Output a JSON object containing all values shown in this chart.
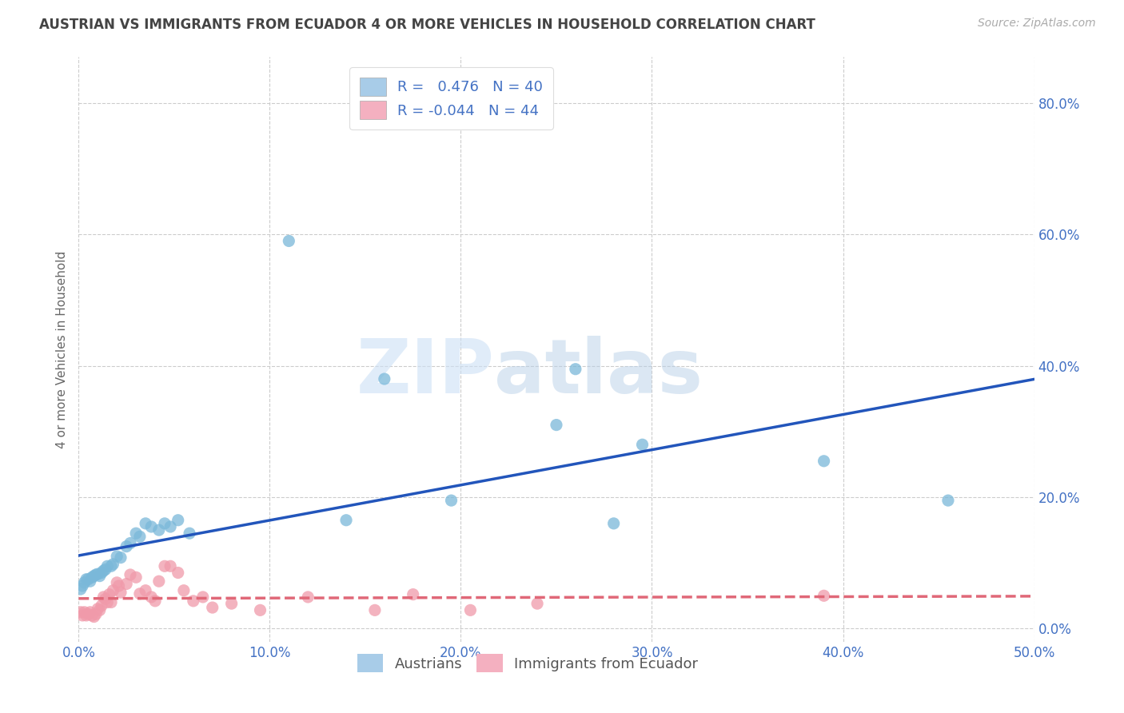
{
  "title": "AUSTRIAN VS IMMIGRANTS FROM ECUADOR 4 OR MORE VEHICLES IN HOUSEHOLD CORRELATION CHART",
  "source": "Source: ZipAtlas.com",
  "ylabel": "4 or more Vehicles in Household",
  "xlim": [
    0.0,
    0.5
  ],
  "ylim": [
    -0.02,
    0.87
  ],
  "xticks": [
    0.0,
    0.1,
    0.2,
    0.3,
    0.4,
    0.5
  ],
  "yticks": [
    0.0,
    0.2,
    0.4,
    0.6,
    0.8
  ],
  "xticklabels": [
    "0.0%",
    "10.0%",
    "20.0%",
    "30.0%",
    "40.0%",
    "50.0%"
  ],
  "yticklabels": [
    "0.0%",
    "20.0%",
    "40.0%",
    "60.0%",
    "80.0%"
  ],
  "austrians_color": "#7ab8d9",
  "ecuador_color": "#f09aaa",
  "trendline_austrians_color": "#2255bb",
  "trendline_ecuador_color": "#e06878",
  "legend_patch_aus": "#a8cce8",
  "legend_patch_ecu": "#f4b0c0",
  "austrians_x": [
    0.001,
    0.002,
    0.003,
    0.004,
    0.005,
    0.006,
    0.007,
    0.008,
    0.009,
    0.01,
    0.011,
    0.012,
    0.013,
    0.014,
    0.015,
    0.017,
    0.018,
    0.02,
    0.022,
    0.025,
    0.027,
    0.03,
    0.032,
    0.035,
    0.038,
    0.042,
    0.045,
    0.048,
    0.052,
    0.058,
    0.11,
    0.14,
    0.16,
    0.195,
    0.25,
    0.26,
    0.28,
    0.295,
    0.39,
    0.455
  ],
  "austrians_y": [
    0.06,
    0.065,
    0.07,
    0.075,
    0.075,
    0.072,
    0.078,
    0.08,
    0.082,
    0.083,
    0.08,
    0.085,
    0.088,
    0.09,
    0.095,
    0.095,
    0.098,
    0.11,
    0.108,
    0.125,
    0.13,
    0.145,
    0.14,
    0.16,
    0.155,
    0.15,
    0.16,
    0.155,
    0.165,
    0.145,
    0.59,
    0.165,
    0.38,
    0.195,
    0.31,
    0.395,
    0.16,
    0.28,
    0.255,
    0.195
  ],
  "ecuador_x": [
    0.001,
    0.002,
    0.003,
    0.004,
    0.005,
    0.006,
    0.007,
    0.008,
    0.009,
    0.01,
    0.011,
    0.012,
    0.013,
    0.014,
    0.015,
    0.016,
    0.017,
    0.018,
    0.02,
    0.021,
    0.022,
    0.025,
    0.027,
    0.03,
    0.032,
    0.035,
    0.038,
    0.04,
    0.042,
    0.045,
    0.048,
    0.052,
    0.055,
    0.06,
    0.065,
    0.07,
    0.08,
    0.095,
    0.12,
    0.155,
    0.175,
    0.205,
    0.24,
    0.39
  ],
  "ecuador_y": [
    0.025,
    0.02,
    0.025,
    0.02,
    0.022,
    0.025,
    0.02,
    0.018,
    0.022,
    0.03,
    0.028,
    0.035,
    0.048,
    0.045,
    0.04,
    0.052,
    0.04,
    0.058,
    0.07,
    0.065,
    0.055,
    0.068,
    0.082,
    0.078,
    0.053,
    0.058,
    0.048,
    0.042,
    0.072,
    0.095,
    0.095,
    0.085,
    0.058,
    0.042,
    0.048,
    0.032,
    0.038,
    0.028,
    0.048,
    0.028,
    0.052,
    0.028,
    0.038,
    0.05
  ],
  "watermark_zip": "ZIP",
  "watermark_atlas": "atlas",
  "background_color": "#ffffff",
  "grid_color": "#cccccc",
  "title_color": "#444444",
  "tick_color": "#4472c4",
  "label_color": "#666666"
}
